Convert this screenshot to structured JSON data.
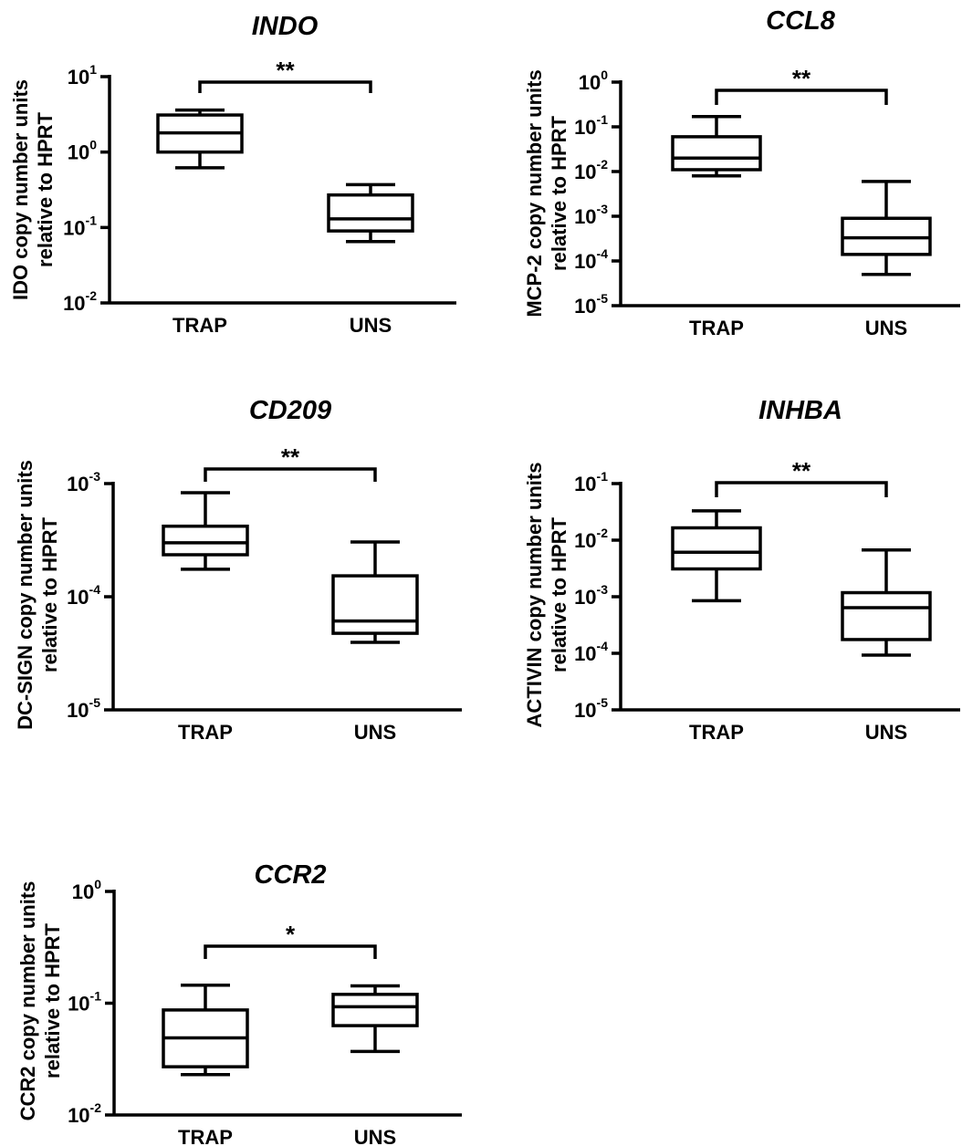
{
  "chart_data": [
    {
      "type": "box",
      "title": "INDO",
      "ylabel": [
        "IDO copy number units",
        "relative to HPRT"
      ],
      "yscale": "log",
      "ylim": [
        0.01,
        10
      ],
      "yticks": [
        {
          "base": "10",
          "exp": "1"
        },
        {
          "base": "10",
          "exp": "0"
        },
        {
          "base": "10",
          "exp": "-1"
        },
        {
          "base": "10",
          "exp": "-2"
        }
      ],
      "categories": [
        "TRAP",
        "UNS"
      ],
      "boxes": [
        {
          "min": 0.62,
          "q1": 1.0,
          "median": 1.8,
          "q3": 3.1,
          "max": 3.6
        },
        {
          "min": 0.065,
          "q1": 0.09,
          "median": 0.13,
          "q3": 0.27,
          "max": 0.37
        }
      ],
      "significance": "**"
    },
    {
      "type": "box",
      "title": "CCL8",
      "ylabel": [
        "MCP-2 copy number units",
        "relative to HPRT"
      ],
      "yscale": "log",
      "ylim": [
        1e-05,
        1
      ],
      "yticks": [
        {
          "base": "10",
          "exp": "0"
        },
        {
          "base": "10",
          "exp": "-1"
        },
        {
          "base": "10",
          "exp": "-2"
        },
        {
          "base": "10",
          "exp": "-3"
        },
        {
          "base": "10",
          "exp": "-4"
        },
        {
          "base": "10",
          "exp": "-5"
        }
      ],
      "categories": [
        "TRAP",
        "UNS"
      ],
      "boxes": [
        {
          "min": 0.008,
          "q1": 0.011,
          "median": 0.02,
          "q3": 0.06,
          "max": 0.17
        },
        {
          "min": 5e-05,
          "q1": 0.00014,
          "median": 0.00033,
          "q3": 0.0009,
          "max": 0.006
        }
      ],
      "significance": "**"
    },
    {
      "type": "box",
      "title": "CD209",
      "ylabel": [
        "DC-SIGN copy number units",
        "relative to HPRT"
      ],
      "yscale": "log",
      "ylim": [
        1e-05,
        0.001
      ],
      "yticks": [
        {
          "base": "10",
          "exp": "-3"
        },
        {
          "base": "10",
          "exp": "-4"
        },
        {
          "base": "10",
          "exp": "-5"
        }
      ],
      "categories": [
        "TRAP",
        "UNS"
      ],
      "boxes": [
        {
          "min": 0.000175,
          "q1": 0.000235,
          "median": 0.0003,
          "q3": 0.00042,
          "max": 0.00083
        },
        {
          "min": 3.95e-05,
          "q1": 4.75e-05,
          "median": 6.1e-05,
          "q3": 0.000153,
          "max": 0.000305
        }
      ],
      "significance": "**"
    },
    {
      "type": "box",
      "title": "INHBA",
      "ylabel": [
        "ACTIVIN copy number units",
        "relative to HPRT"
      ],
      "yscale": "log",
      "ylim": [
        1e-05,
        0.1
      ],
      "yticks": [
        {
          "base": "10",
          "exp": "-1"
        },
        {
          "base": "10",
          "exp": "-2"
        },
        {
          "base": "10",
          "exp": "-3"
        },
        {
          "base": "10",
          "exp": "-4"
        },
        {
          "base": "10",
          "exp": "-5"
        }
      ],
      "categories": [
        "TRAP",
        "UNS"
      ],
      "boxes": [
        {
          "min": 0.00085,
          "q1": 0.0031,
          "median": 0.0061,
          "q3": 0.0165,
          "max": 0.033
        },
        {
          "min": 9.3e-05,
          "q1": 0.000175,
          "median": 0.00064,
          "q3": 0.00118,
          "max": 0.0067
        }
      ],
      "significance": "**"
    },
    {
      "type": "box",
      "title": "CCR2",
      "ylabel": [
        "CCR2 copy number units",
        "relative to HPRT"
      ],
      "yscale": "log",
      "ylim": [
        0.01,
        1
      ],
      "yticks": [
        {
          "base": "10",
          "exp": "0"
        },
        {
          "base": "10",
          "exp": "-1"
        },
        {
          "base": "10",
          "exp": "-2"
        }
      ],
      "categories": [
        "TRAP",
        "UNS"
      ],
      "boxes": [
        {
          "min": 0.023,
          "q1": 0.027,
          "median": 0.049,
          "q3": 0.087,
          "max": 0.145
        },
        {
          "min": 0.037,
          "q1": 0.063,
          "median": 0.093,
          "q3": 0.12,
          "max": 0.143
        }
      ],
      "significance": "*"
    }
  ]
}
